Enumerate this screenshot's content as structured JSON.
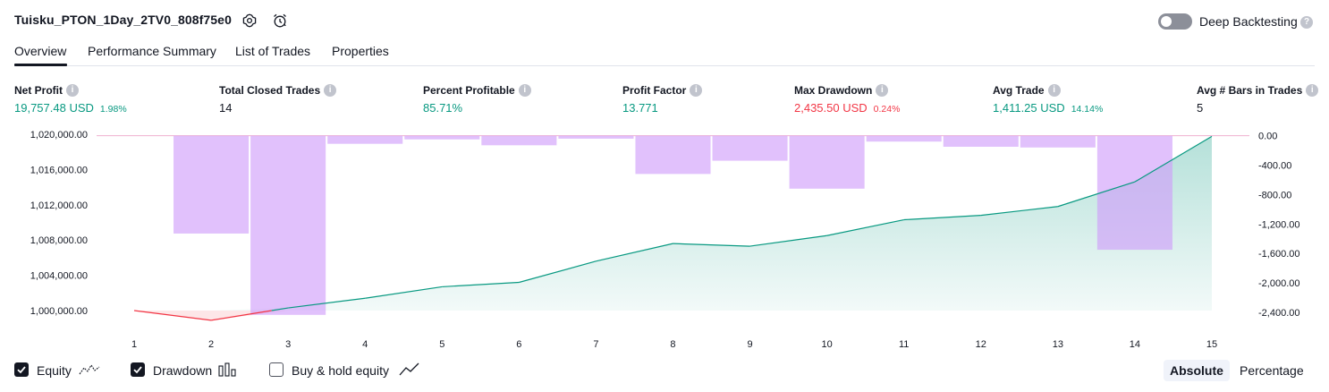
{
  "header": {
    "strategy_title": "Tuisku_PTON_1Day_2TV0_808f75e0",
    "deep_backtesting_label": "Deep Backtesting",
    "deep_backtesting_on": false
  },
  "tabs": [
    {
      "label": "Overview",
      "active": true
    },
    {
      "label": "Performance Summary",
      "active": false
    },
    {
      "label": "List of Trades",
      "active": false
    },
    {
      "label": "Properties",
      "active": false
    }
  ],
  "metrics": [
    {
      "label": "Net Profit",
      "value": "19,757.48 USD",
      "pct": "1.98%",
      "color": "green"
    },
    {
      "label": "Total Closed Trades",
      "value": "14",
      "pct": "",
      "color": "neutral"
    },
    {
      "label": "Percent Profitable",
      "value": "85.71%",
      "pct": "",
      "color": "green"
    },
    {
      "label": "Profit Factor",
      "value": "13.771",
      "pct": "",
      "color": "green"
    },
    {
      "label": "Max Drawdown",
      "value": "2,435.50 USD",
      "pct": "0.24%",
      "color": "red"
    },
    {
      "label": "Avg Trade",
      "value": "1,411.25 USD",
      "pct": "14.14%",
      "color": "green"
    },
    {
      "label": "Avg # Bars in Trades",
      "value": "5",
      "pct": "",
      "color": "neutral"
    }
  ],
  "chart_data": {
    "type": "line",
    "x": [
      1,
      2,
      3,
      4,
      5,
      6,
      7,
      8,
      9,
      10,
      11,
      12,
      13,
      14,
      15
    ],
    "left_axis_ticks": [
      "1,020,000.00",
      "1,016,000.00",
      "1,012,000.00",
      "1,008,000.00",
      "1,004,000.00",
      "1,000,000.00"
    ],
    "right_axis_ticks": [
      "0.00",
      "-400.00",
      "-800.00",
      "-1,200.00",
      "-1,600.00",
      "-2,000.00",
      "-2,400.00"
    ],
    "left_ylim": [
      999800,
      1020400
    ],
    "right_ylim": [
      -2450,
      20
    ],
    "series": [
      {
        "name": "Equity",
        "axis": "left",
        "color_positive": "#089981",
        "color_negative": "#f23645",
        "values": [
          1000000,
          998900,
          1000300,
          1001400,
          1002700,
          1003200,
          1005600,
          1007600,
          1007300,
          1008500,
          1010300,
          1010800,
          1011800,
          1014600,
          1019757.48
        ]
      },
      {
        "name": "Drawdown",
        "axis": "right",
        "color": "#e1c4fb",
        "type": "bar",
        "values": [
          null,
          -1330,
          -2435.5,
          -110,
          -50,
          -130,
          -40,
          -520,
          -340,
          -720,
          -80,
          -150,
          -160,
          -1550,
          null
        ]
      }
    ]
  },
  "legend": {
    "equity_label": "Equity",
    "drawdown_label": "Drawdown",
    "buyhold_label": "Buy & hold equity",
    "equity_checked": true,
    "drawdown_checked": true,
    "buyhold_checked": false
  },
  "view_modes": {
    "absolute_label": "Absolute",
    "percentage_label": "Percentage",
    "active": "Absolute"
  }
}
